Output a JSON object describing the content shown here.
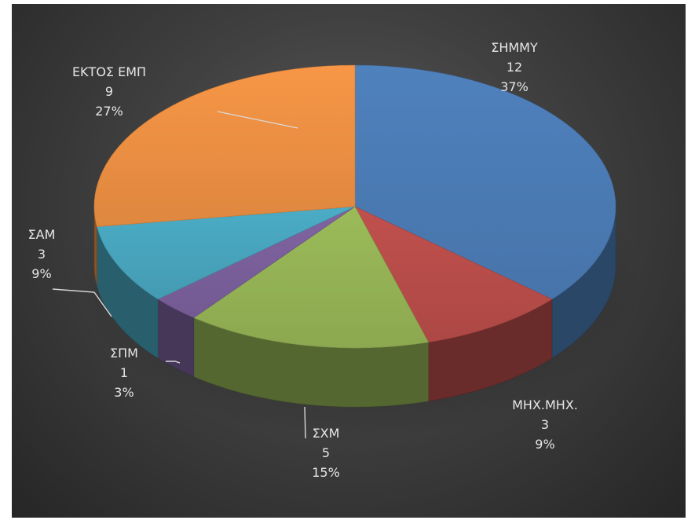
{
  "chart_data": {
    "type": "pie",
    "three_d": true,
    "title": "",
    "slices": [
      {
        "label": "ΣΗΜΜΥ",
        "value": 12,
        "percent": "37%",
        "color": "#4f81bd"
      },
      {
        "label": "ΜΗΧ.ΜΗΧ.",
        "value": 3,
        "percent": "9%",
        "color": "#c0504d"
      },
      {
        "label": "ΣΧΜ",
        "value": 5,
        "percent": "15%",
        "color": "#9bbb59"
      },
      {
        "label": "ΣΠΜ",
        "value": 1,
        "percent": "3%",
        "color": "#8064a2"
      },
      {
        "label": "ΣΑΜ",
        "value": 3,
        "percent": "9%",
        "color": "#4bacc6"
      },
      {
        "label": "ΕΚΤΟΣ ΕΜΠ",
        "value": 9,
        "percent": "27%",
        "color": "#f79646"
      }
    ],
    "background": "#404040",
    "label_color": "#e6e6e6"
  }
}
